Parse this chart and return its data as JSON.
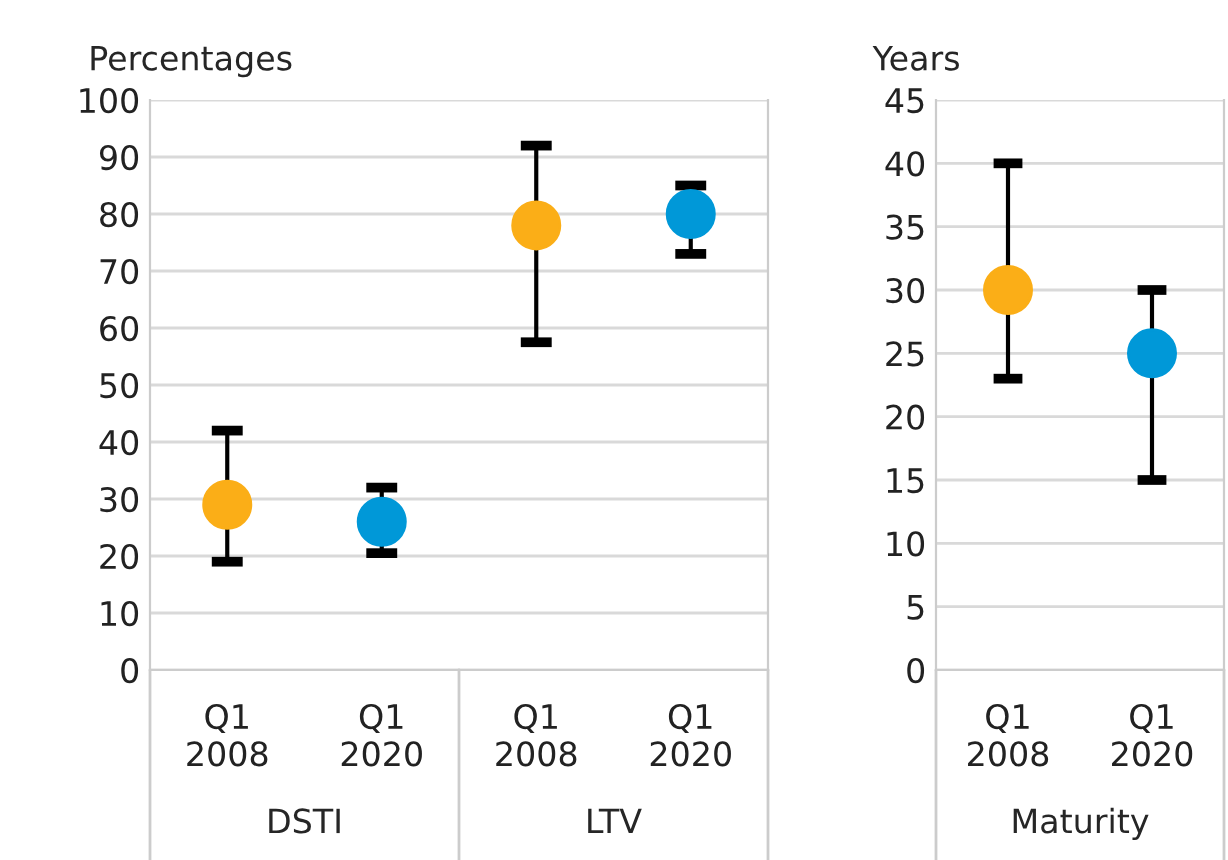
{
  "chart_data": [
    {
      "type": "scatter",
      "ylabel": "Percentages",
      "categories": [
        "Q1\n2008",
        "Q1\n2020",
        "Q1\n2008",
        "Q1\n2020"
      ],
      "annotations": [
        "DSTI",
        "LTV"
      ],
      "series": [
        {
          "color": "#fbae17",
          "values": [
            29,
            null,
            78,
            null
          ],
          "errors": [
            [
              19,
              42
            ],
            null,
            [
              57.5,
              92
            ],
            null
          ]
        },
        {
          "color": "#0098d8",
          "values": [
            null,
            26,
            null,
            80
          ],
          "errors": [
            null,
            [
              20.5,
              32
            ],
            null,
            [
              73,
              85
            ]
          ]
        }
      ],
      "ylim": [
        0,
        100
      ],
      "yticks": [
        0,
        10,
        20,
        30,
        40,
        50,
        60,
        70,
        80,
        90,
        100
      ],
      "grid": "y",
      "marker": "circle",
      "legend": false
    },
    {
      "type": "scatter",
      "ylabel": "Years",
      "categories": [
        "Q1\n2008",
        "Q1\n2020"
      ],
      "annotations": [
        "Maturity"
      ],
      "series": [
        {
          "color": "#fbae17",
          "values": [
            30,
            null
          ],
          "errors": [
            [
              23,
              40
            ],
            null
          ]
        },
        {
          "color": "#0098d8",
          "values": [
            null,
            25
          ],
          "errors": [
            null,
            [
              15,
              30
            ]
          ]
        }
      ],
      "ylim": [
        0,
        45
      ],
      "yticks": [
        0,
        5,
        10,
        15,
        20,
        25,
        30,
        35,
        40,
        45
      ],
      "grid": "y",
      "marker": "circle",
      "legend": false
    }
  ]
}
